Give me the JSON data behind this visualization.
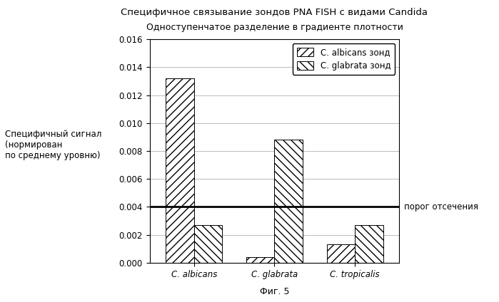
{
  "title": "Специфичное связывание зондов PNA FISH с видами Candida",
  "subtitle": "Одноступенчатое разделение в градиенте плотности",
  "ylabel_lines": [
    "Специфичный сигнал",
    "(нормирован",
    "по среднему уровню)"
  ],
  "cutoff_label": "порог отсечения",
  "fig_caption": "Фиг. 5",
  "categories": [
    "C. albicans",
    "C. glabrata",
    "C. tropicalis"
  ],
  "series": [
    {
      "name": "C. albicans зонд",
      "values": [
        0.0132,
        0.0004,
        0.0013
      ],
      "hatch": "///",
      "facecolor": "#ffffff",
      "edgecolor": "#000000"
    },
    {
      "name": "C. glabrata зонд",
      "values": [
        0.0027,
        0.0088,
        0.0027
      ],
      "hatch": "\\\\\\",
      "facecolor": "#ffffff",
      "edgecolor": "#000000"
    }
  ],
  "ylim": [
    0,
    0.016
  ],
  "yticks": [
    0.0,
    0.002,
    0.004,
    0.006,
    0.008,
    0.01,
    0.012,
    0.014,
    0.016
  ],
  "cutoff_line": 0.004,
  "bar_width": 0.35,
  "background_color": "#ffffff",
  "grid_color": "#bbbbbb",
  "title_fontsize": 9.5,
  "subtitle_fontsize": 9,
  "ylabel_fontsize": 8.5,
  "tick_fontsize": 8.5,
  "legend_fontsize": 8.5,
  "caption_fontsize": 9
}
